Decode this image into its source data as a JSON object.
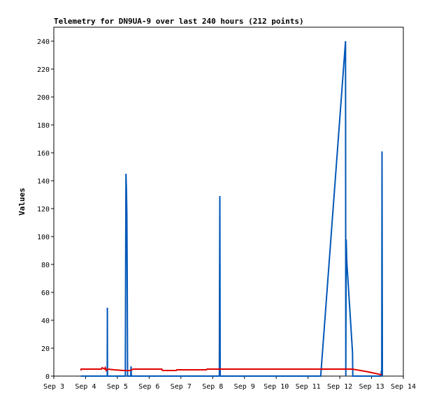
{
  "chart_data": {
    "type": "line",
    "title": "Telemetry for DN9UA-9 over last 240 hours (212 points)",
    "xlabel": "",
    "ylabel": "Values",
    "xlim": [
      3,
      14
    ],
    "ylim": [
      0,
      250
    ],
    "x_ticks": [
      3,
      4,
      5,
      6,
      7,
      8,
      9,
      10,
      11,
      12,
      13,
      14
    ],
    "x_tick_labels": [
      "Sep 3",
      "Sep 4",
      "Sep 5",
      "Sep 6",
      "Sep 7",
      "Sep 8",
      "Sep 9",
      "Sep 10",
      "Sep 11",
      "Sep 12",
      "Sep 13",
      "Sep 14"
    ],
    "y_ticks": [
      0,
      20,
      40,
      60,
      80,
      100,
      120,
      140,
      160,
      180,
      200,
      220,
      240
    ],
    "grid": false,
    "legend": "none",
    "series": [
      {
        "color": "#0057b8",
        "points": [
          [
            3.85,
            0
          ],
          [
            4.68,
            0
          ],
          [
            4.685,
            49
          ],
          [
            4.69,
            0
          ],
          [
            5.25,
            0
          ],
          [
            5.26,
            72
          ],
          [
            5.27,
            145
          ],
          [
            5.285,
            133
          ],
          [
            5.3,
            115
          ],
          [
            5.31,
            70
          ],
          [
            5.32,
            0
          ],
          [
            5.42,
            0
          ],
          [
            5.43,
            7
          ],
          [
            5.44,
            0
          ],
          [
            8.21,
            0
          ],
          [
            8.215,
            48
          ],
          [
            8.225,
            129
          ],
          [
            8.235,
            0
          ],
          [
            11.4,
            0
          ],
          [
            12.18,
            240
          ],
          [
            12.19,
            0
          ],
          [
            12.2,
            98
          ],
          [
            12.22,
            82
          ],
          [
            12.4,
            17
          ],
          [
            12.41,
            0
          ],
          [
            13.3,
            0
          ],
          [
            13.31,
            4
          ],
          [
            13.32,
            0
          ],
          [
            13.33,
            161
          ],
          [
            13.34,
            0
          ]
        ]
      },
      {
        "color": "#e00000",
        "points": [
          [
            3.85,
            4
          ],
          [
            3.86,
            5
          ],
          [
            4.5,
            5
          ],
          [
            4.52,
            6
          ],
          [
            4.6,
            5
          ],
          [
            4.62,
            6
          ],
          [
            4.65,
            4
          ],
          [
            4.7,
            5
          ],
          [
            4.9,
            4.5
          ],
          [
            5.2,
            4
          ],
          [
            5.4,
            4
          ],
          [
            5.5,
            5
          ],
          [
            6.4,
            5
          ],
          [
            6.42,
            4
          ],
          [
            6.85,
            4
          ],
          [
            6.87,
            4.5
          ],
          [
            7.8,
            4.5
          ],
          [
            7.82,
            5
          ],
          [
            12.4,
            5
          ],
          [
            12.9,
            3
          ],
          [
            13.3,
            1
          ],
          [
            13.32,
            1
          ]
        ]
      }
    ]
  }
}
